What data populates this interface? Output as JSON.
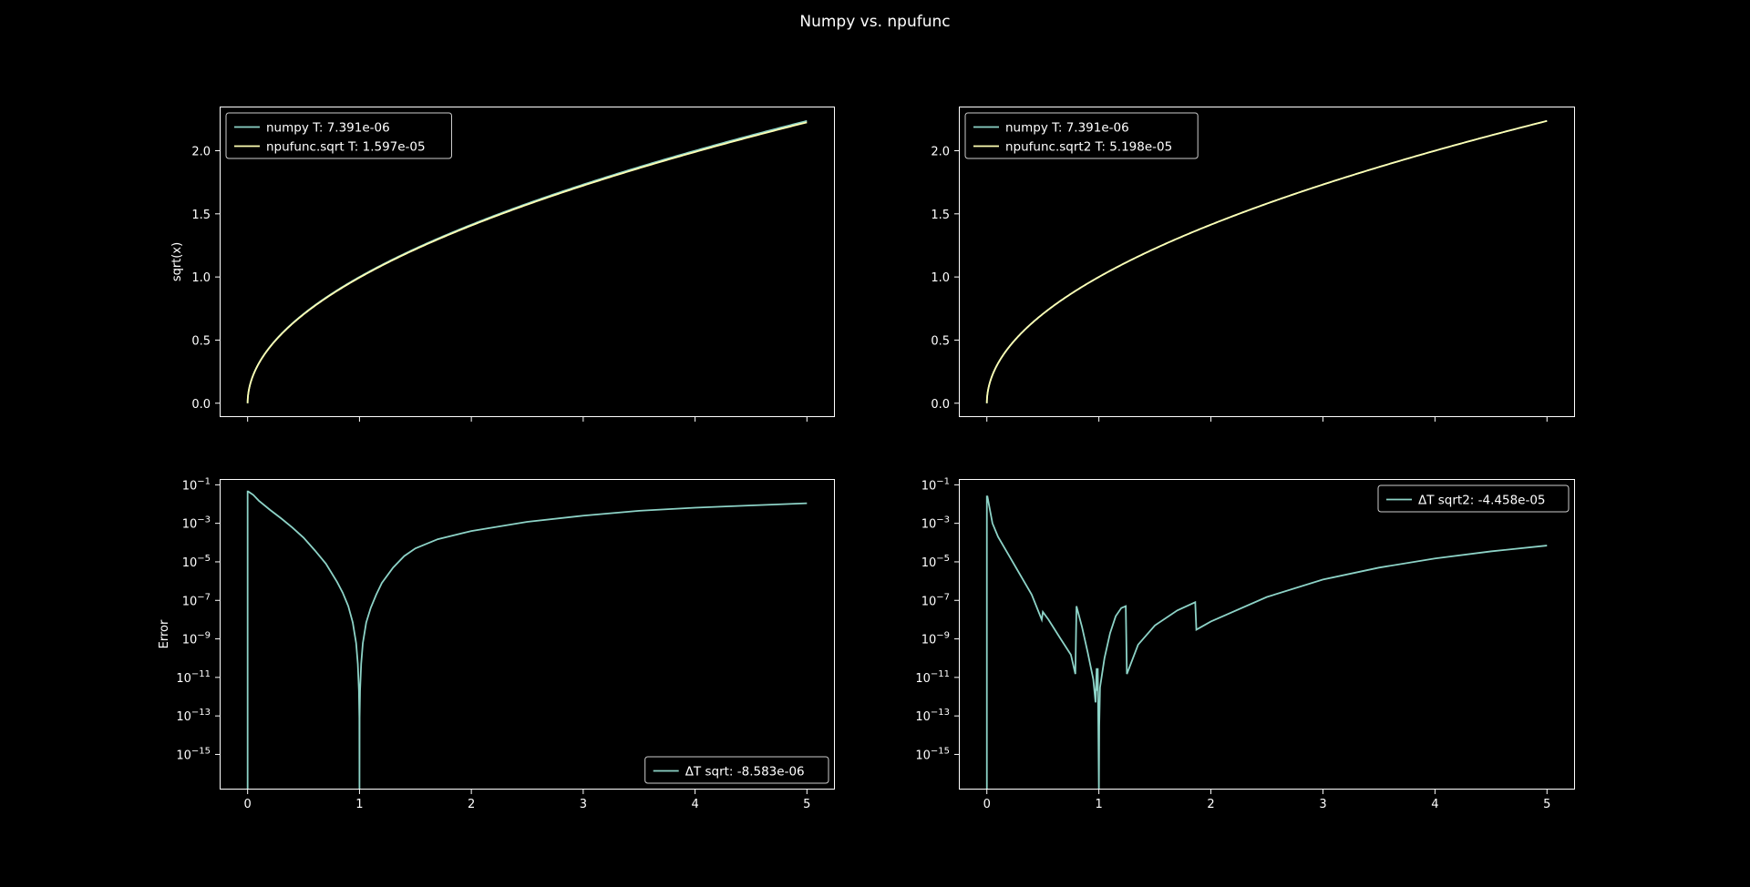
{
  "figure": {
    "title": "Numpy vs. npufunc"
  },
  "colors": {
    "background": "#000000",
    "axes": "#ffffff",
    "series_numpy": "#8dd3c7",
    "series_npufunc": "#ffffb3"
  },
  "chart_data": [
    {
      "type": "line",
      "ylabel": "sqrt(x)",
      "xlim": [
        -0.25,
        5.25
      ],
      "ylim": [
        -0.11,
        2.35
      ],
      "y_ticks": [
        0.0,
        0.5,
        1.0,
        1.5,
        2.0
      ],
      "y_tick_labels": [
        "0.0",
        "0.5",
        "1.0",
        "1.5",
        "2.0"
      ],
      "x_ticks": [
        0,
        1,
        2,
        3,
        4,
        5
      ],
      "x_tick_labels": [
        "",
        "",
        "",
        "",
        "",
        ""
      ],
      "legend_position": "top-left",
      "series": [
        {
          "name": "numpy T: 7.391e-06",
          "function": "sqrt",
          "x_range": [
            0,
            5
          ],
          "end_value": 2.2361
        },
        {
          "name": "npufunc.sqrt T: 1.597e-05",
          "function": "sqrt",
          "x_range": [
            0,
            5
          ],
          "end_value": 2.225
        }
      ]
    },
    {
      "type": "line",
      "ylabel": "",
      "xlim": [
        -0.25,
        5.25
      ],
      "ylim": [
        -0.11,
        2.35
      ],
      "y_ticks": [
        0.0,
        0.5,
        1.0,
        1.5,
        2.0
      ],
      "y_tick_labels": [
        "0.0",
        "0.5",
        "1.0",
        "1.5",
        "2.0"
      ],
      "x_ticks": [
        0,
        1,
        2,
        3,
        4,
        5
      ],
      "x_tick_labels": [
        "",
        "",
        "",
        "",
        "",
        ""
      ],
      "legend_position": "top-left",
      "series": [
        {
          "name": "numpy T: 7.391e-06",
          "function": "sqrt",
          "x_range": [
            0,
            5
          ],
          "end_value": 2.2361
        },
        {
          "name": "npufunc.sqrt2 T: 5.198e-05",
          "function": "sqrt",
          "x_range": [
            0,
            5
          ],
          "end_value": 2.2361
        }
      ]
    },
    {
      "type": "line",
      "ylabel": "Error",
      "yscale": "log",
      "xlim": [
        -0.25,
        5.25
      ],
      "ylim": [
        1.5e-17,
        0.2
      ],
      "y_tick_exponents": [
        -1,
        -3,
        -5,
        -7,
        -9,
        -11,
        -13,
        -15
      ],
      "x_ticks": [
        0,
        1,
        2,
        3,
        4,
        5
      ],
      "x_tick_labels": [
        "0",
        "1",
        "2",
        "3",
        "4",
        "5"
      ],
      "legend_position": "bottom-right",
      "series": [
        {
          "name": "ΔT sqrt: -8.583e-06",
          "x": [
            0,
            0.0,
            0.005,
            0.05,
            0.1,
            0.2,
            0.3,
            0.4,
            0.5,
            0.6,
            0.7,
            0.8,
            0.85,
            0.9,
            0.94,
            0.97,
            0.985,
            0.995,
            0.999,
            1.0,
            1.001,
            1.005,
            1.015,
            1.03,
            1.06,
            1.1,
            1.15,
            1.2,
            1.3,
            1.4,
            1.5,
            1.7,
            2.0,
            2.5,
            3.0,
            3.5,
            4.0,
            4.5,
            5.0
          ],
          "y": [
            1e-17,
            0.045,
            0.045,
            0.03,
            0.015,
            0.005,
            0.0018,
            0.0006,
            0.00018,
            4e-05,
            8e-06,
            9e-07,
            2.5e-07,
            5e-08,
            7e-09,
            6e-10,
            5e-11,
            2e-12,
            8e-14,
            1e-17,
            8e-14,
            2e-12,
            5e-11,
            6e-10,
            7e-09,
            4e-08,
            2e-07,
            8e-07,
            5e-06,
            2e-05,
            5e-05,
            0.00015,
            0.0004,
            0.0012,
            0.0025,
            0.0045,
            0.0065,
            0.0085,
            0.011
          ]
        }
      ]
    },
    {
      "type": "line",
      "ylabel": "",
      "yscale": "log",
      "xlim": [
        -0.25,
        5.25
      ],
      "ylim": [
        1.5e-17,
        0.2
      ],
      "y_tick_exponents": [
        -1,
        -3,
        -5,
        -7,
        -9,
        -11,
        -13,
        -15
      ],
      "x_ticks": [
        0,
        1,
        2,
        3,
        4,
        5
      ],
      "x_tick_labels": [
        "0",
        "1",
        "2",
        "3",
        "4",
        "5"
      ],
      "legend_position": "top-right",
      "series": [
        {
          "name": "ΔT sqrt2: -4.458e-05",
          "x": [
            0,
            0.0,
            0.005,
            0.05,
            0.1,
            0.2,
            0.3,
            0.4,
            0.49,
            0.5,
            0.55,
            0.65,
            0.75,
            0.79,
            0.8,
            0.85,
            0.9,
            0.95,
            0.97,
            0.98,
            0.985,
            0.99,
            0.995,
            1.0,
            1.003,
            1.01,
            1.05,
            1.1,
            1.15,
            1.2,
            1.24,
            1.25,
            1.35,
            1.5,
            1.7,
            1.86,
            1.87,
            2.0,
            2.5,
            3.0,
            3.5,
            4.0,
            4.5,
            5.0
          ],
          "y": [
            1e-17,
            0.025,
            0.025,
            0.001,
            0.0002,
            2e-05,
            2e-06,
            2e-07,
            1e-08,
            2.5e-08,
            1e-08,
            1.2e-09,
            1.5e-10,
            1.5e-11,
            5e-08,
            4e-09,
            2e-10,
            8e-12,
            5e-13,
            3e-11,
            2e-12,
            3e-11,
            3e-14,
            1e-17,
            3e-14,
            3e-12,
            1e-10,
            2e-09,
            1.5e-08,
            4e-08,
            5e-08,
            1.5e-11,
            5e-10,
            5e-09,
            3e-08,
            8e-08,
            3e-09,
            8e-09,
            1.5e-07,
            1.2e-06,
            5e-06,
            1.5e-05,
            3.5e-05,
            7e-05
          ]
        }
      ]
    }
  ]
}
